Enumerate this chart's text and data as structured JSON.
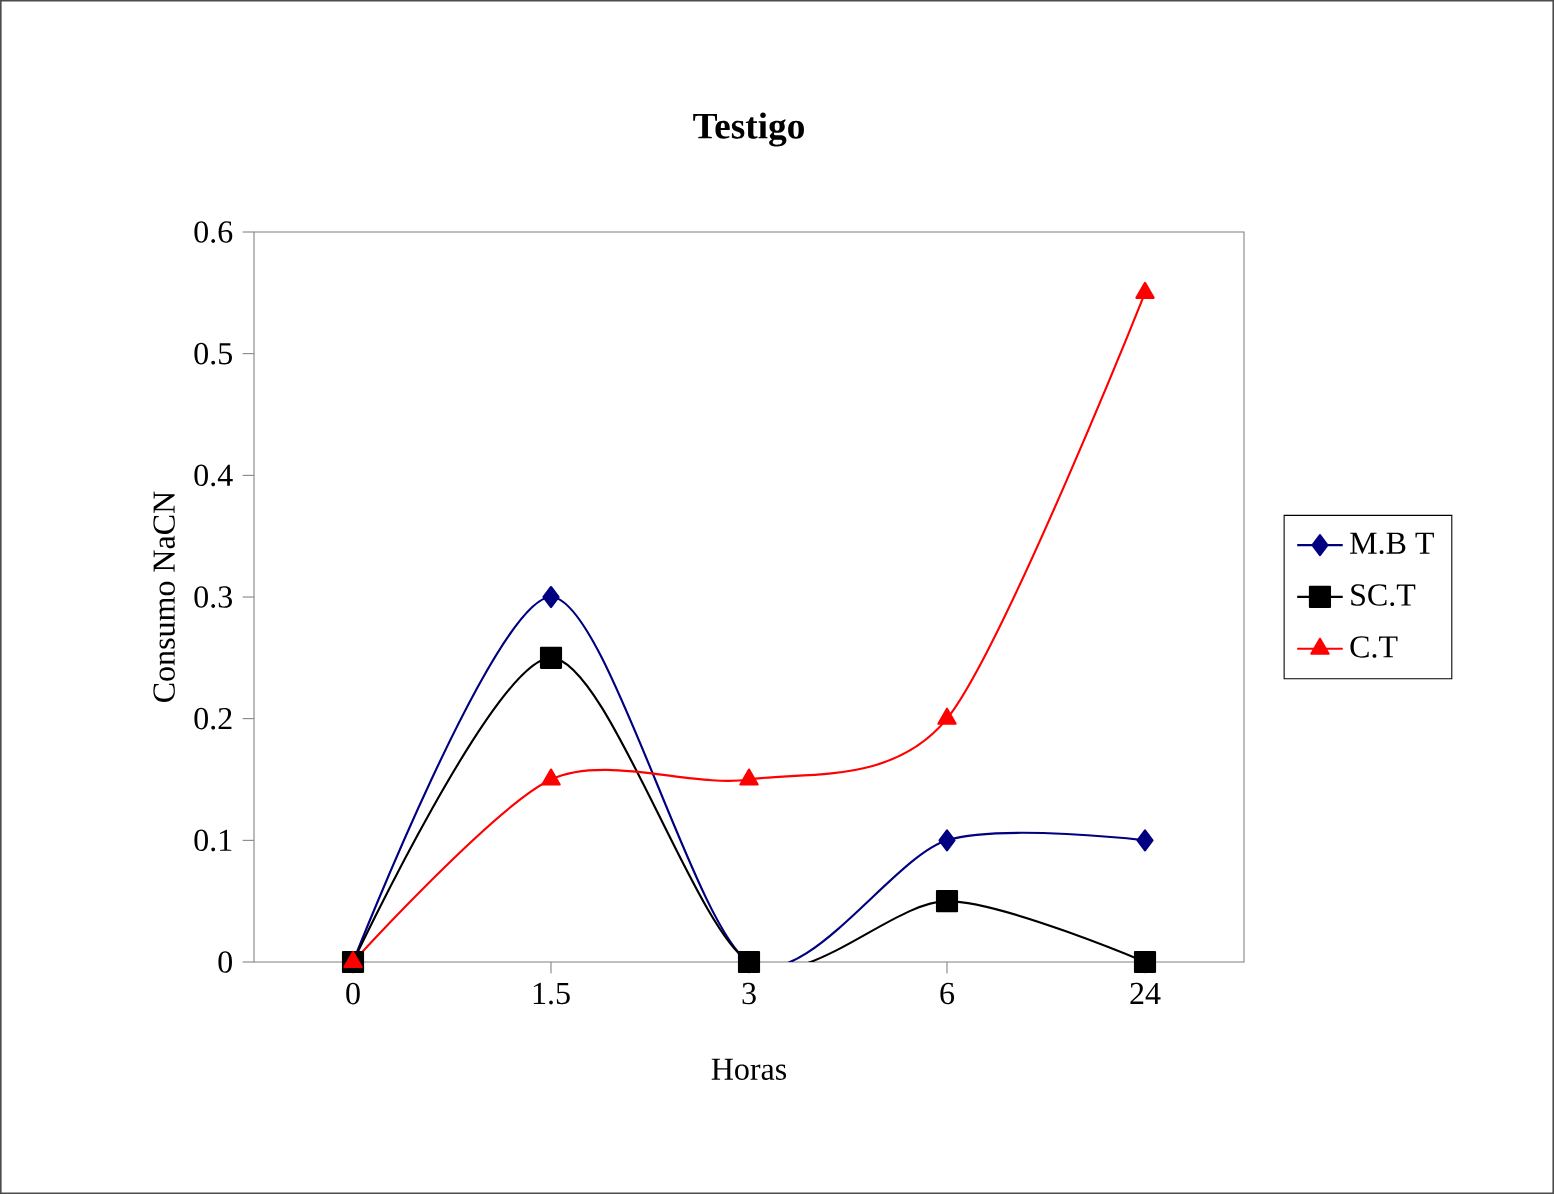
{
  "chart_data": {
    "type": "line",
    "title": "Testigo",
    "xlabel": "Horas",
    "ylabel": "Consumo NaCN",
    "categories": [
      "0",
      "1.5",
      "3",
      "6",
      "24"
    ],
    "series": [
      {
        "name": "M.B T",
        "color": "#000080",
        "marker": "diamond",
        "values": [
          0,
          0.3,
          0,
          0.1,
          0.1
        ]
      },
      {
        "name": "SC.T",
        "color": "#000000",
        "marker": "square",
        "values": [
          0,
          0.25,
          0,
          0.05,
          0
        ]
      },
      {
        "name": "C.T",
        "color": "#ff0000",
        "marker": "triangle",
        "values": [
          0,
          0.15,
          0.15,
          0.2,
          0.55
        ]
      }
    ],
    "ylim": [
      0,
      0.6
    ],
    "yticks": [
      0,
      0.1,
      0.2,
      0.3,
      0.4,
      0.5,
      0.6
    ],
    "grid": false,
    "legend": "right",
    "line_style": "solid"
  }
}
